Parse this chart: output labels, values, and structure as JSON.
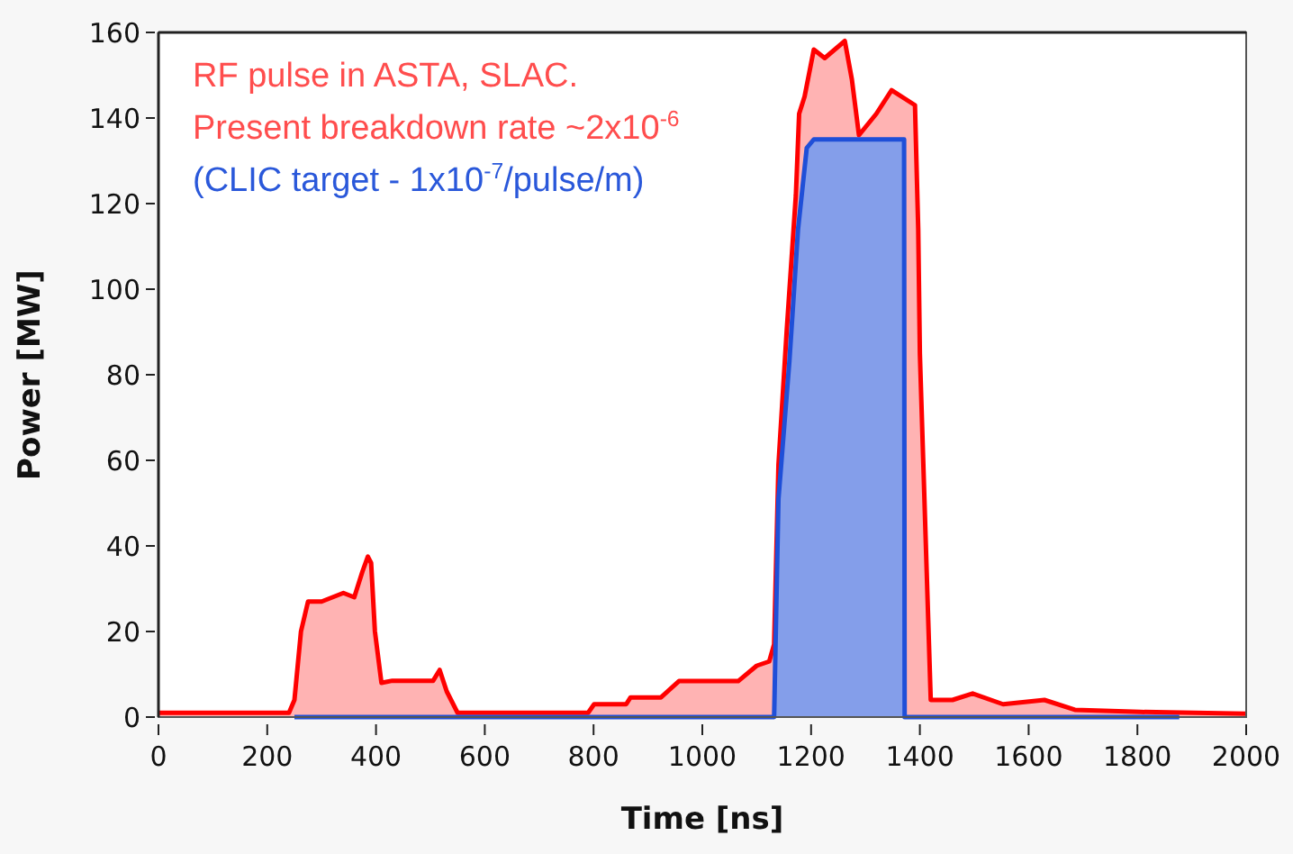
{
  "chart_data": {
    "type": "area",
    "xlabel": "Time [ns]",
    "ylabel": "Power [MW]",
    "xlim": [
      0,
      2000
    ],
    "ylim": [
      0,
      160
    ],
    "xticks": [
      0,
      200,
      400,
      600,
      800,
      1000,
      1200,
      1400,
      1600,
      1800,
      2000
    ],
    "yticks": [
      0,
      20,
      40,
      60,
      80,
      100,
      120,
      140,
      160
    ],
    "grid": false,
    "annotations": [
      "RF pulse in ASTA, SLAC.",
      "Present breakdown rate ~2x10$^{-6}$",
      "(CLIC target - 1x10$^{-7}$/pulse/m)"
    ],
    "series": [
      {
        "color": "#ff0000",
        "x": [
          0,
          240,
          250,
          262,
          275,
          300,
          340,
          360,
          375,
          385,
          391,
          398,
          410,
          430,
          480,
          505,
          517,
          530,
          550,
          600,
          650,
          700,
          790,
          801,
          860,
          868,
          924,
          957,
          1000,
          1066,
          1100,
          1123,
          1132,
          1140,
          1155,
          1172,
          1178,
          1188,
          1205,
          1225,
          1262,
          1275,
          1288,
          1320,
          1348,
          1391,
          1397,
          1400,
          1408,
          1420,
          1460,
          1497,
          1553,
          1629,
          1685,
          1805,
          2000
        ],
        "values": [
          1,
          1,
          4,
          20,
          27,
          27,
          29,
          28,
          34,
          37.5,
          36,
          20,
          8,
          8.5,
          8.5,
          8.5,
          11,
          6,
          1,
          1,
          1,
          1,
          1,
          3,
          3,
          4.6,
          4.6,
          8.4,
          8.4,
          8.4,
          12,
          13,
          17,
          59,
          90,
          122,
          141,
          145,
          156,
          154,
          158,
          149,
          136,
          141,
          146.5,
          143,
          114,
          85,
          52.5,
          4,
          4,
          5.5,
          3,
          4,
          1.7,
          1.2,
          0.8
        ]
      },
      {
        "color": "#1f4fd8",
        "x": [
          250,
          1132,
          1140,
          1160,
          1176,
          1192,
          1205,
          1371,
          1372,
          1877
        ],
        "values": [
          0,
          0,
          51,
          83,
          114,
          133,
          135,
          135,
          0,
          0
        ]
      }
    ]
  }
}
